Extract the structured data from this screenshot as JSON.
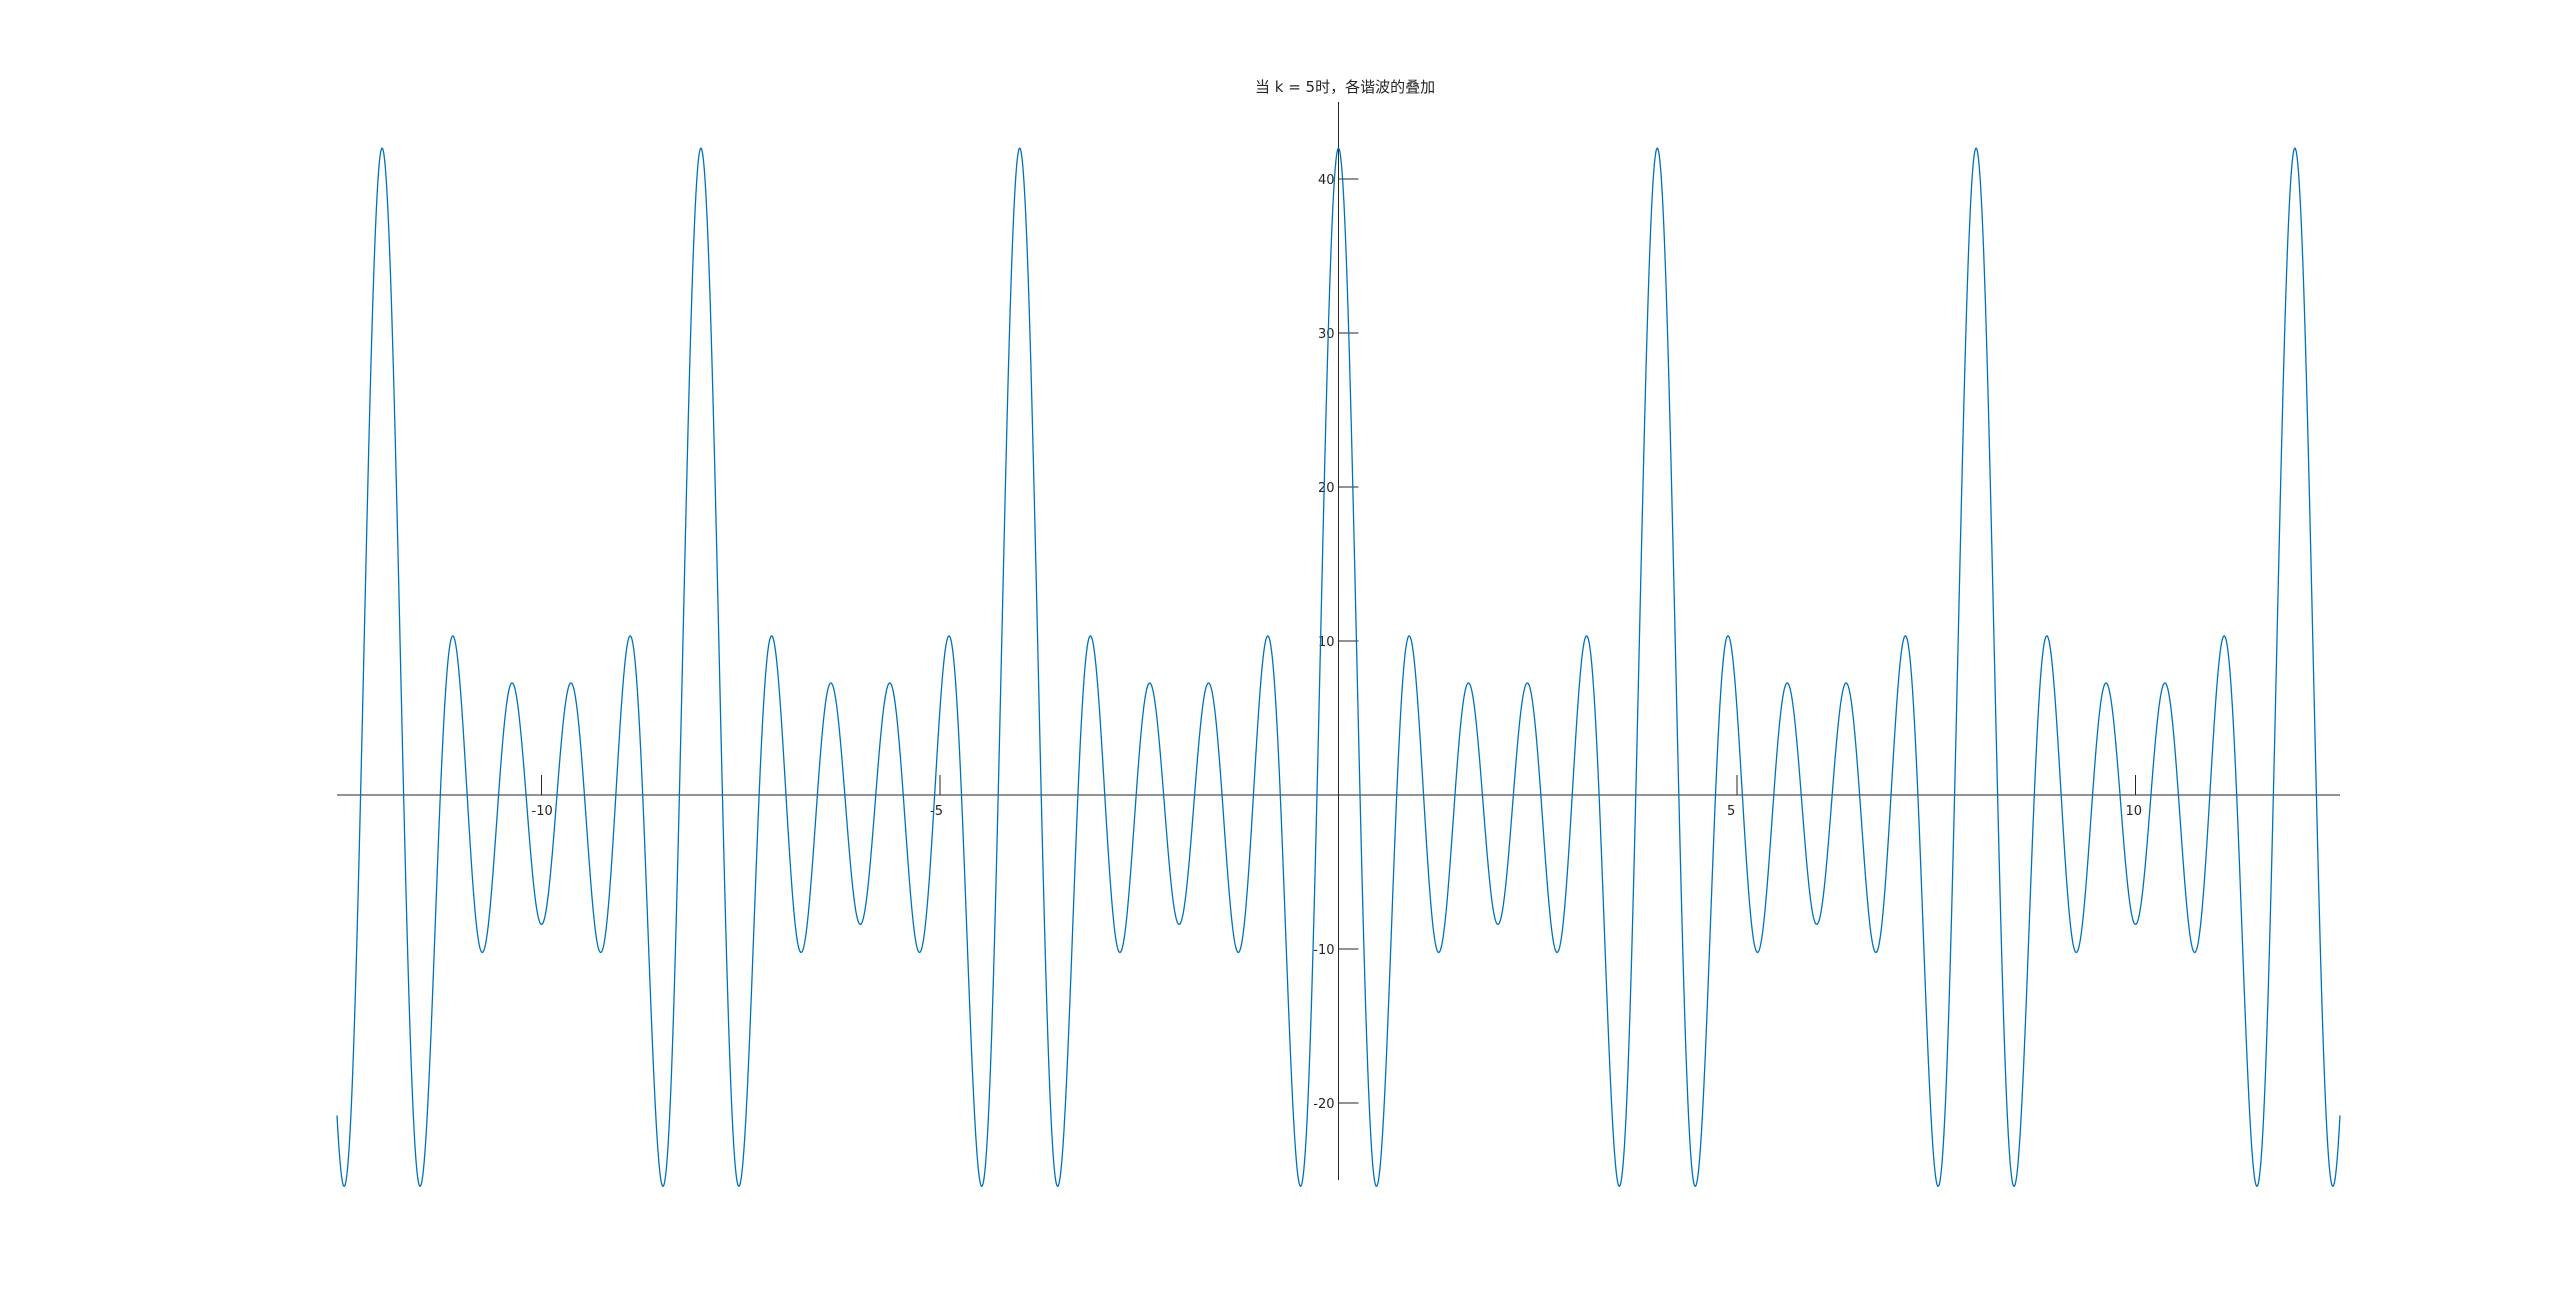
{
  "chart_data": {
    "type": "line",
    "title": "当 k = 5时，各谐波的叠加",
    "xlabel": "",
    "ylabel": "",
    "xlim": [
      -12.566,
      12.566
    ],
    "ylim": [
      -25,
      45
    ],
    "x_ticks": [
      -10,
      -5,
      5,
      10
    ],
    "x_tick_labels": [
      "-10",
      "-5",
      "5",
      "10"
    ],
    "y_ticks": [
      -20,
      -10,
      10,
      20,
      30,
      40
    ],
    "y_tick_labels": [
      "-20",
      "-10",
      "10",
      "20",
      "30",
      "40"
    ],
    "axis_location": "origin",
    "grid": false,
    "series": [
      {
        "formula": "sum over n=1..k of n*cos(n*pi*x/2) scaled so that peak = 42",
        "k": 5,
        "x_start": -12.566,
        "x_end": 12.566,
        "y_max": 42,
        "y_min": -19.4,
        "color": "#0072BD"
      }
    ]
  }
}
